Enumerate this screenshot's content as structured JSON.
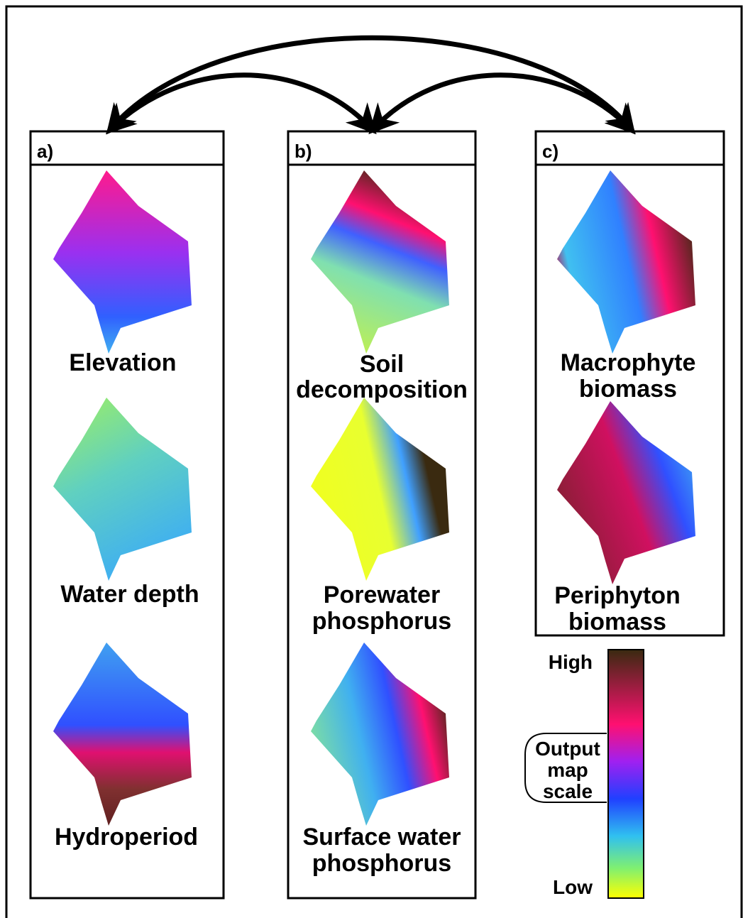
{
  "panels": [
    {
      "label": "a)",
      "maps": [
        {
          "title": [
            "Elevation"
          ]
        },
        {
          "title": [
            "Water depth"
          ]
        },
        {
          "title": [
            "Hydroperiod"
          ]
        }
      ]
    },
    {
      "label": "b)",
      "maps": [
        {
          "title": [
            "Soil",
            "decomposition"
          ]
        },
        {
          "title": [
            "Porewater",
            "phosphorus"
          ]
        },
        {
          "title": [
            "Surface water",
            "phosphorus"
          ]
        }
      ]
    },
    {
      "label": "c)",
      "maps": [
        {
          "title": [
            "Macrophyte",
            "biomass"
          ]
        },
        {
          "title": [
            "Periphyton",
            "biomass"
          ]
        }
      ]
    }
  ],
  "legend": {
    "high": "High",
    "low": "Low",
    "title": [
      "Output",
      "map",
      "scale"
    ]
  }
}
